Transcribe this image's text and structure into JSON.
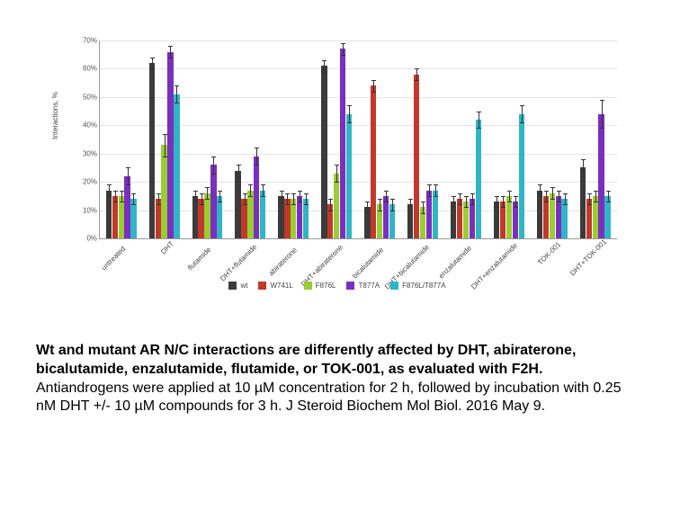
{
  "chart": {
    "type": "bar",
    "ylabel": "Interactions, %",
    "ymax": 70,
    "ytick_step": 10,
    "background_color": "#ffffff",
    "grid_color": "#e3e3e3",
    "axis_color": "#999999",
    "tick_font_size": 8,
    "error_bar_color": "#333333",
    "series": [
      {
        "name": "wt",
        "color": "#3b3b3b"
      },
      {
        "name": "W741L",
        "color": "#c0392b"
      },
      {
        "name": "F876L",
        "color": "#9acd32"
      },
      {
        "name": "T877A",
        "color": "#7b2fbf"
      },
      {
        "name": "F876L/T877A",
        "color": "#2fb5c7"
      }
    ],
    "categories": [
      "untreated",
      "DHT",
      "flutamide",
      "DHT+flutamide",
      "abiraterone",
      "DHT+abiraterone",
      "bicalutamide",
      "DHT+bicalutamide",
      "enzalutamide",
      "DHT+enzalutamide",
      "TOK-001",
      "DHT+TOK-001"
    ],
    "values": [
      [
        17,
        15,
        15,
        22,
        14
      ],
      [
        62,
        14,
        33,
        66,
        51
      ],
      [
        15,
        14,
        16,
        26,
        15
      ],
      [
        24,
        14,
        17,
        29,
        17
      ],
      [
        15,
        14,
        14,
        15,
        14
      ],
      [
        61,
        12,
        23,
        67,
        44
      ],
      [
        11,
        54,
        12,
        15,
        12
      ],
      [
        12,
        58,
        11,
        17,
        17
      ],
      [
        13,
        14,
        13,
        14,
        42
      ],
      [
        13,
        13,
        15,
        13,
        44
      ],
      [
        17,
        15,
        16,
        15,
        14
      ],
      [
        25,
        14,
        15,
        44,
        15
      ]
    ],
    "errors": [
      [
        2,
        2,
        2,
        3,
        2
      ],
      [
        2,
        2,
        4,
        2,
        3
      ],
      [
        2,
        2,
        2,
        3,
        2
      ],
      [
        2,
        2,
        2,
        3,
        2
      ],
      [
        2,
        2,
        2,
        2,
        2
      ],
      [
        2,
        2,
        3,
        2,
        3
      ],
      [
        2,
        2,
        2,
        2,
        2
      ],
      [
        2,
        2,
        2,
        2,
        2
      ],
      [
        2,
        2,
        2,
        2,
        3
      ],
      [
        2,
        2,
        2,
        2,
        3
      ],
      [
        2,
        2,
        2,
        2,
        2
      ],
      [
        3,
        2,
        2,
        5,
        2
      ]
    ]
  },
  "caption": {
    "bold": "Wt and mutant AR N/C interactions are differently affected by DHT, abiraterone, bicalutamide, enzalutamide, flutamide, or TOK-001, as evaluated with F2H.",
    "rest": " Antiandrogens were applied at 10 µM concentration for 2 h, followed by incubation with 0.25 nM DHT +/- 10 µM compounds for 3 h. J Steroid Biochem Mol Biol. 2016 May 9."
  }
}
